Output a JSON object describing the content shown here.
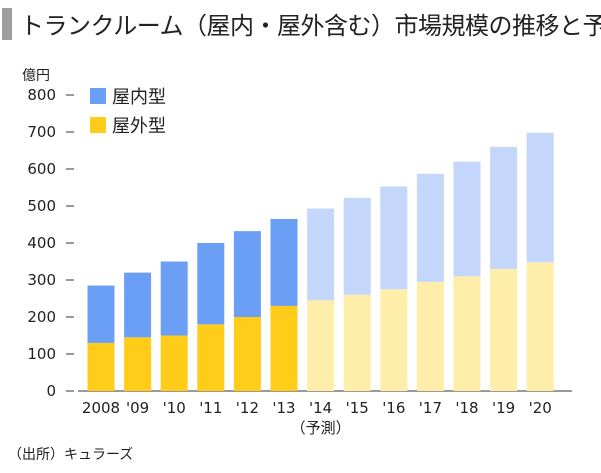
{
  "title": "トランクルーム（屋内・屋外含む）市場規模の推移と予測",
  "source": "（出所）キュラーズ",
  "chart_data": {
    "type": "bar",
    "stacked": true,
    "unit_label": "億円",
    "categories": [
      "2008",
      "'09",
      "'10",
      "'11",
      "'12",
      "'13",
      "'14",
      "'15",
      "'16",
      "'17",
      "'18",
      "'19",
      "'20"
    ],
    "forecast_start_index": 6,
    "forecast_label": "（予測）",
    "ylim": [
      0,
      800
    ],
    "yticks": [
      0,
      100,
      200,
      300,
      400,
      500,
      600,
      700,
      800
    ],
    "legend_position": "top-left",
    "series": [
      {
        "name": "屋外型",
        "values": [
          130,
          145,
          150,
          180,
          200,
          230,
          245,
          260,
          275,
          295,
          310,
          330,
          348
        ],
        "color": "#ffcc1a",
        "forecast_color": "#ffedaa"
      },
      {
        "name": "屋内型",
        "values": [
          155,
          175,
          200,
          220,
          232,
          235,
          248,
          262,
          278,
          292,
          310,
          330,
          350
        ],
        "color": "#6a9ff5",
        "forecast_color": "#c5d6fb"
      }
    ]
  }
}
